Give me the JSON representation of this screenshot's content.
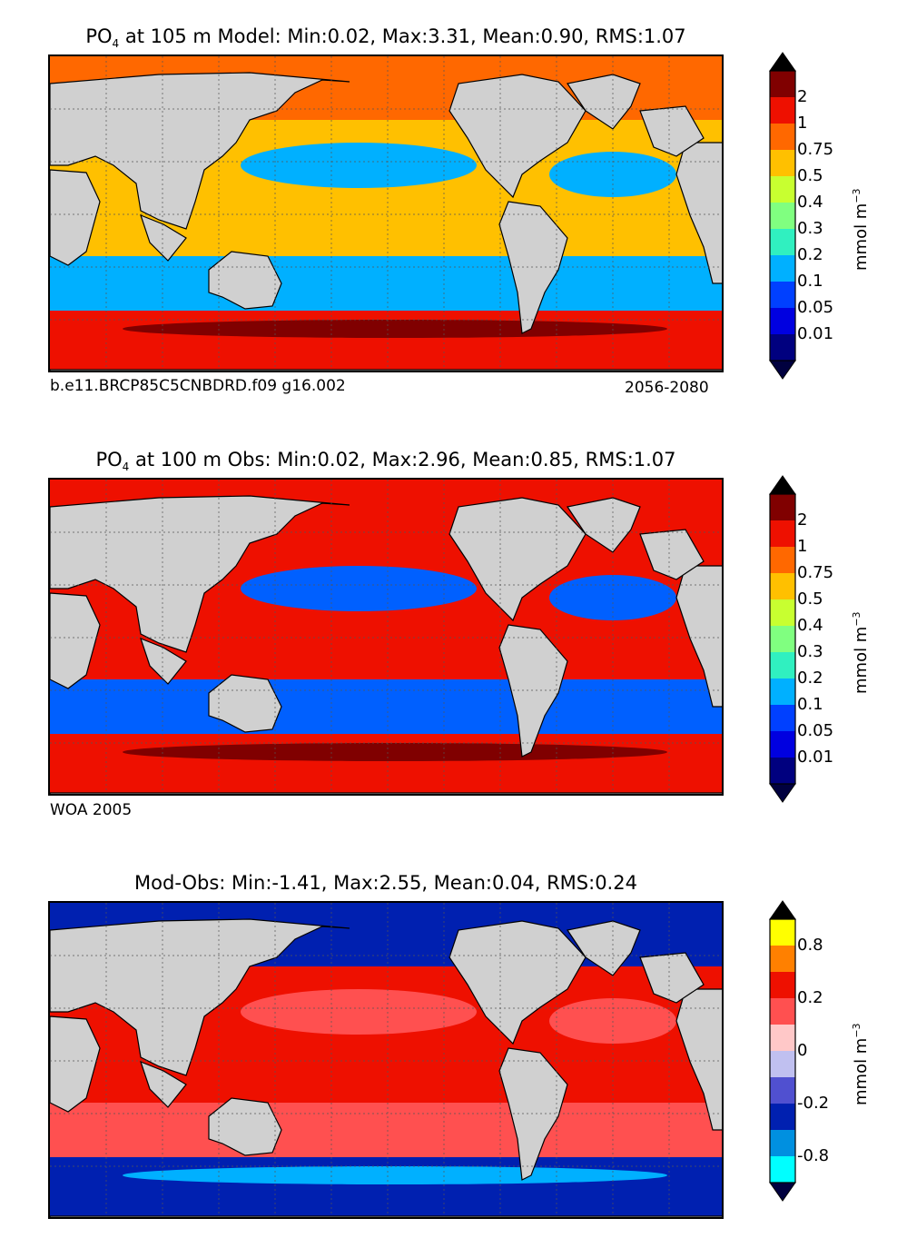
{
  "panels": [
    {
      "id": "model",
      "title_species": "PO",
      "title_sub": "4",
      "title_rest": " at 105 m Model: Min:0.02, Max:3.31, Mean:0.90, RMS:1.07",
      "caption_left": "b.e11.BRCP85C5CNBDRD.f09 g16.002",
      "caption_right": "2056-2080",
      "colorbar": {
        "ticks": [
          "0.01",
          "0.05",
          "0.1",
          "0.2",
          "0.3",
          "0.4",
          "0.5",
          "0.75",
          "1",
          "2"
        ],
        "unit_base": "mmol m",
        "unit_sup": "−3",
        "colors": [
          "#00007f",
          "#0000e0",
          "#0040ff",
          "#00b0ff",
          "#30f0c0",
          "#80ff80",
          "#c8ff30",
          "#ffc000",
          "#ff6800",
          "#ee1000",
          "#800000"
        ]
      },
      "map_fields": {
        "north": "#ff6800",
        "equator": "#ffc000",
        "gyre": "#00b0ff",
        "south": "#ee1000",
        "band": "#800000"
      }
    },
    {
      "id": "obs",
      "title_species": "PO",
      "title_sub": "4",
      "title_rest": " at 100 m Obs: Min:0.02, Max:2.96, Mean:0.85, RMS:1.07",
      "caption_left": "WOA 2005",
      "caption_right": "",
      "colorbar": {
        "ticks": [
          "0.01",
          "0.05",
          "0.1",
          "0.2",
          "0.3",
          "0.4",
          "0.5",
          "0.75",
          "1",
          "2"
        ],
        "unit_base": "mmol m",
        "unit_sup": "−3",
        "colors": [
          "#00007f",
          "#0000e0",
          "#0040ff",
          "#00b0ff",
          "#30f0c0",
          "#80ff80",
          "#c8ff30",
          "#ffc000",
          "#ff6800",
          "#ee1000",
          "#800000"
        ]
      },
      "map_fields": {
        "north": "#ee1000",
        "equator": "#ee1000",
        "gyre": "#0060ff",
        "south": "#ee1000",
        "band": "#800000"
      }
    },
    {
      "id": "diff",
      "title_species": "",
      "title_sub": "",
      "title_rest": "Mod-Obs: Min:-1.41, Max:2.55, Mean:0.04, RMS:0.24",
      "caption_left": "",
      "caption_right": "",
      "colorbar": {
        "ticks": [
          "-0.8",
          "-0.2",
          "0",
          "0.2",
          "0.8"
        ],
        "tick_slots": [
          1,
          3,
          5,
          7,
          9
        ],
        "unit_base": "mmol m",
        "unit_sup": "−3",
        "colors": [
          "#00ffff",
          "#0090e0",
          "#0020b0",
          "#5050d0",
          "#c0c0f0",
          "#ffc8c8",
          "#ff5050",
          "#ee1000",
          "#ff8000",
          "#ffff00"
        ]
      },
      "map_fields": {
        "north": "#0020b0",
        "equator": "#ee1000",
        "gyre": "#ff5050",
        "south": "#0020b0",
        "band": "#00b0ff"
      }
    }
  ],
  "land_color": "#d0d0d0",
  "below_color": "#00003f",
  "above_color": "#000000"
}
